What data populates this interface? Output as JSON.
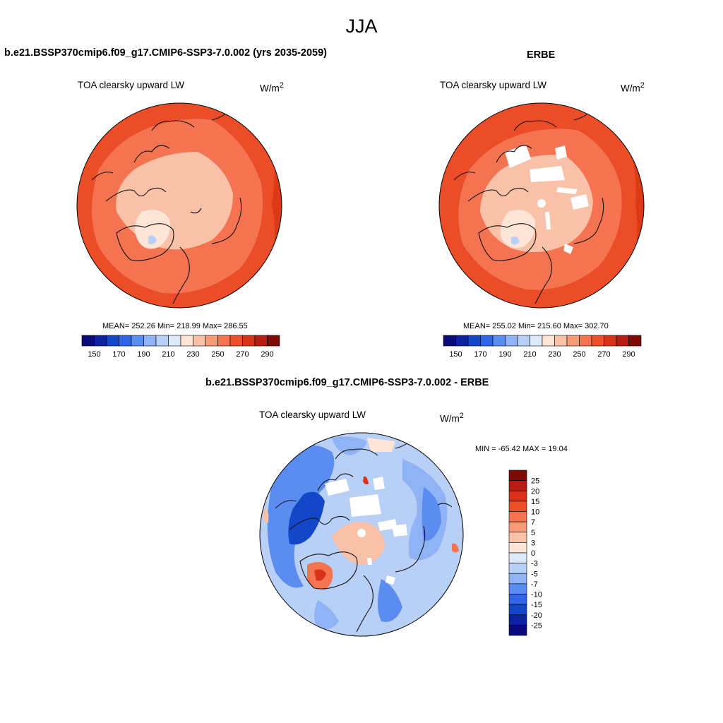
{
  "page_title": "JJA",
  "panels": {
    "model": {
      "title": "b.e21.BSSP370cmip6.f09_g17.CMIP6-SSP3-7.0.002 (yrs 2035-2059)",
      "variable": "TOA clearsky upward LW",
      "units": "W/m",
      "units_exp": "2",
      "stats": "MEAN= 252.26  Min= 218.99  Max= 286.55"
    },
    "obs": {
      "title": "ERBE",
      "variable": "TOA clearsky upward LW",
      "units": "W/m",
      "units_exp": "2",
      "stats": "MEAN= 255.02  Min= 215.60  Max= 302.70"
    },
    "diff": {
      "title": "b.e21.BSSP370cmip6.f09_g17.CMIP6-SSP3-7.0.002 - ERBE",
      "variable": "TOA clearsky upward LW",
      "units": "W/m",
      "units_exp": "2",
      "stats": "MIN = -65.42 MAX =  19.04"
    }
  },
  "colorbars": {
    "abs": {
      "colors": [
        "#0a0a7a",
        "#0b239f",
        "#1446c8",
        "#2f66e8",
        "#5b8cf0",
        "#8fb3f4",
        "#b8cff6",
        "#dde8f9",
        "#fde5d8",
        "#f9c2a8",
        "#f79a77",
        "#f47451",
        "#ec4f2a",
        "#d8331a",
        "#b51e10",
        "#7d0a05"
      ],
      "labels": [
        "150",
        "170",
        "190",
        "210",
        "230",
        "250",
        "270",
        "290"
      ]
    },
    "diff": {
      "colors": [
        "#7d0a05",
        "#b51e10",
        "#d8331a",
        "#ec4f2a",
        "#f47451",
        "#f79a77",
        "#f9c2a8",
        "#fde5d8",
        "#dde8f9",
        "#b8cff6",
        "#8fb3f4",
        "#5b8cf0",
        "#2f66e8",
        "#1446c8",
        "#0b239f",
        "#0a0a7a"
      ],
      "labels": [
        "25",
        "20",
        "15",
        "10",
        "7",
        "5",
        "3",
        "0",
        "-3",
        "-5",
        "-7",
        "-10",
        "-15",
        "-20",
        "-25"
      ]
    }
  }
}
